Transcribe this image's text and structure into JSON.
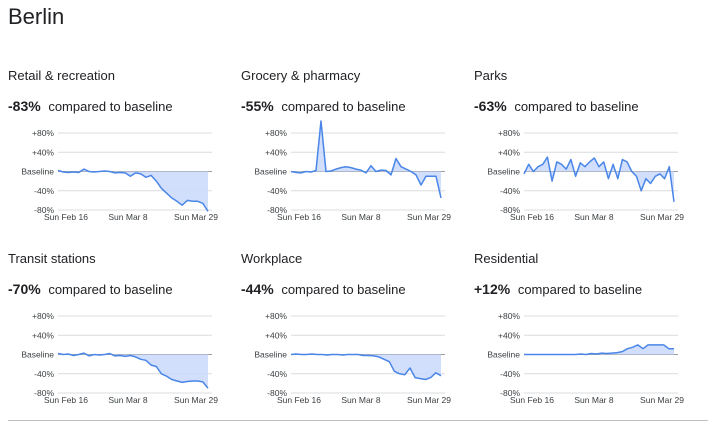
{
  "page": {
    "title": "Berlin"
  },
  "colors": {
    "line": "#4a86e8",
    "fill": "#c9d9fb",
    "gridline": "#dadce0",
    "baseline": "#9aa0a6"
  },
  "chart_data": [
    {
      "type": "line",
      "title": "Retail & recreation",
      "change": "-83%",
      "change_label": "compared to baseline",
      "yticks": [
        "+80%",
        "+40%",
        "Baseline",
        "-40%",
        "-80%"
      ],
      "ylim": [
        -80,
        80
      ],
      "xticks": [
        "Sun Feb 16",
        "Sun Mar 8",
        "Sun Mar 29"
      ],
      "series": [
        {
          "values": [
            2,
            -1,
            -2,
            -1,
            -2,
            5,
            0,
            -1,
            0,
            1,
            0,
            -3,
            -2,
            -3,
            -10,
            -3,
            -5,
            -12,
            -8,
            -20,
            -35,
            -45,
            -55,
            -62,
            -70,
            -60,
            -62,
            -62,
            -66,
            -83
          ]
        }
      ]
    },
    {
      "type": "line",
      "title": "Grocery & pharmacy",
      "change": "-55%",
      "change_label": "compared to baseline",
      "yticks": [
        "+80%",
        "+40%",
        "Baseline",
        "-40%",
        "-80%"
      ],
      "ylim": [
        -80,
        80
      ],
      "xticks": [
        "Sun Feb 16",
        "Sun Mar 8",
        "Sun Mar 29"
      ],
      "series": [
        {
          "values": [
            0,
            -2,
            -3,
            0,
            -1,
            2,
            105,
            0,
            1,
            5,
            8,
            10,
            8,
            5,
            3,
            -3,
            12,
            0,
            3,
            2,
            -7,
            27,
            10,
            5,
            0,
            -7,
            -28,
            -10,
            -10,
            -10,
            -55
          ]
        }
      ]
    },
    {
      "type": "line",
      "title": "Parks",
      "change": "-63%",
      "change_label": "compared to baseline",
      "yticks": [
        "+80%",
        "+40%",
        "Baseline",
        "-40%",
        "-80%"
      ],
      "ylim": [
        -80,
        80
      ],
      "xticks": [
        "Sun Feb 16",
        "Sun Mar 8",
        "Sun Mar 29"
      ],
      "series": [
        {
          "values": [
            -5,
            15,
            0,
            10,
            15,
            30,
            -20,
            20,
            15,
            5,
            25,
            -10,
            18,
            10,
            20,
            28,
            10,
            20,
            -15,
            15,
            -15,
            25,
            20,
            0,
            -10,
            -40,
            -15,
            -25,
            -10,
            -5,
            -15,
            10,
            -63
          ]
        }
      ]
    },
    {
      "type": "line",
      "title": "Transit stations",
      "change": "-70%",
      "change_label": "compared to baseline",
      "yticks": [
        "+80%",
        "+40%",
        "Baseline",
        "-40%",
        "-80%"
      ],
      "ylim": [
        -80,
        80
      ],
      "xticks": [
        "Sun Feb 16",
        "Sun Mar 8",
        "Sun Mar 29"
      ],
      "series": [
        {
          "values": [
            2,
            0,
            1,
            -2,
            0,
            3,
            -3,
            0,
            -1,
            0,
            2,
            -3,
            -2,
            -4,
            -2,
            -5,
            -10,
            -12,
            -22,
            -25,
            -40,
            -45,
            -52,
            -55,
            -58,
            -56,
            -55,
            -55,
            -57,
            -70
          ]
        }
      ]
    },
    {
      "type": "line",
      "title": "Workplace",
      "change": "-44%",
      "change_label": "compared to baseline",
      "yticks": [
        "+80%",
        "+40%",
        "Baseline",
        "-40%",
        "-80%"
      ],
      "ylim": [
        -80,
        80
      ],
      "xticks": [
        "Sun Feb 16",
        "Sun Mar 8",
        "Sun Mar 29"
      ],
      "series": [
        {
          "values": [
            0,
            1,
            0,
            0,
            1,
            0,
            0,
            -1,
            0,
            0,
            -1,
            0,
            0,
            0,
            -2,
            -2,
            -3,
            -5,
            -10,
            -15,
            -35,
            -40,
            -42,
            -28,
            -48,
            -50,
            -52,
            -48,
            -38,
            -44
          ]
        }
      ]
    },
    {
      "type": "line",
      "title": "Residential",
      "change": "+12%",
      "change_label": "compared to baseline",
      "yticks": [
        "+80%",
        "+40%",
        "Baseline",
        "-40%",
        "-80%"
      ],
      "ylim": [
        -80,
        80
      ],
      "xticks": [
        "Sun Feb 16",
        "Sun Mar 8",
        "Sun Mar 29"
      ],
      "series": [
        {
          "values": [
            0,
            0,
            0,
            0,
            0,
            0,
            0,
            0,
            0,
            0,
            0,
            1,
            0,
            2,
            1,
            3,
            2,
            3,
            4,
            6,
            12,
            15,
            20,
            12,
            20,
            20,
            20,
            20,
            12,
            12
          ]
        }
      ]
    }
  ]
}
